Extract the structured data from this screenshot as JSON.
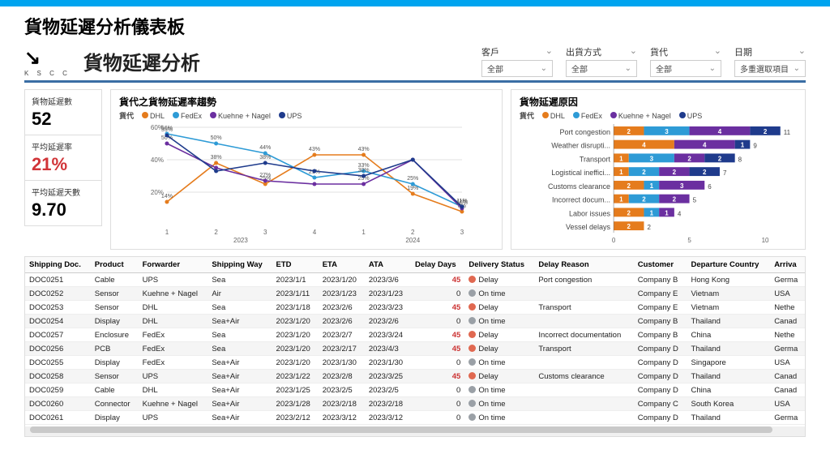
{
  "colors": {
    "dhl": "#e57c1d",
    "fedex": "#2e9bd6",
    "kn": "#6b2fa0",
    "ups": "#1f3b8c",
    "delay": "#e06850",
    "ontime": "#9aa0a6",
    "grid": "#e0e0e0",
    "axis": "#666"
  },
  "page": {
    "title": "貨物延遲分析儀表板"
  },
  "dash": {
    "title": "貨物延遲分析",
    "logo_sub": "K S C C"
  },
  "filters": [
    {
      "label": "客戶",
      "value": "全部"
    },
    {
      "label": "出貨方式",
      "value": "全部"
    },
    {
      "label": "貨代",
      "value": "全部"
    },
    {
      "label": "日期",
      "value": "多重選取項目"
    }
  ],
  "kpis": [
    {
      "label": "貨物延遲數",
      "value": "52",
      "cls": ""
    },
    {
      "label": "平均延遲率",
      "value": "21%",
      "cls": "kpi-red"
    },
    {
      "label": "平均延遲天數",
      "value": "9.70",
      "cls": ""
    }
  ],
  "line": {
    "title": "貨代之貨物延遲率趨勢",
    "legend_label": "貨代",
    "series_names": [
      "DHL",
      "FedEx",
      "Kuehne + Nagel",
      "UPS"
    ],
    "y": {
      "min": 0,
      "max": 60,
      "ticks": [
        20,
        40,
        60
      ]
    },
    "x_groups": [
      {
        "label": "2023",
        "ticks": [
          "1",
          "2",
          "3",
          "4"
        ]
      },
      {
        "label": "2024",
        "ticks": [
          "1",
          "2",
          "3"
        ]
      }
    ],
    "series": {
      "DHL": [
        14,
        38,
        25,
        43,
        43,
        19,
        8
      ],
      "FedEx": [
        56,
        50,
        44,
        29,
        33,
        25,
        11
      ],
      "Kuehne + Nagel": [
        50,
        35,
        27,
        25,
        25,
        40,
        10
      ],
      "UPS": [
        55,
        33,
        38,
        33,
        30,
        40,
        11
      ]
    }
  },
  "bars": {
    "title": "貨物延遲原因",
    "legend_label": "貨代",
    "series_names": [
      "DHL",
      "FedEx",
      "Kuehne + Nagel",
      "UPS"
    ],
    "x": {
      "min": 0,
      "max": 10,
      "ticks": [
        0,
        5,
        10
      ]
    },
    "rows": [
      {
        "label": "Port congestion",
        "seg": [
          2,
          3,
          4,
          2
        ],
        "total": 11
      },
      {
        "label": "Weather disrupti...",
        "seg": [
          4,
          0,
          4,
          1
        ],
        "total": 9
      },
      {
        "label": "Transport",
        "seg": [
          1,
          3,
          2,
          2
        ],
        "total": 8
      },
      {
        "label": "Logistical ineffici...",
        "seg": [
          1,
          2,
          2,
          2
        ],
        "total": 7
      },
      {
        "label": "Customs clearance",
        "seg": [
          2,
          1,
          3,
          0
        ],
        "total": 6
      },
      {
        "label": "Incorrect docum...",
        "seg": [
          1,
          2,
          2,
          0
        ],
        "total": 5
      },
      {
        "label": "Labor issues",
        "seg": [
          2,
          1,
          1,
          0
        ],
        "total": 4
      },
      {
        "label": "Vessel delays",
        "seg": [
          2,
          0,
          0,
          0
        ],
        "total": 2
      }
    ]
  },
  "table": {
    "headers": [
      "Shipping Doc.",
      "Product",
      "Forwarder",
      "Shipping Way",
      "ETD",
      "ETA",
      "ATA",
      "Delay Days",
      "Delivery Status",
      "Delay Reason",
      "Customer",
      "Departure Country",
      "Arriva"
    ],
    "rows": [
      [
        "DOC0251",
        "Cable",
        "UPS",
        "Sea",
        "2023/1/1",
        "2023/1/20",
        "2023/3/6",
        "45",
        "Delay",
        "Port congestion",
        "Company B",
        "Hong Kong",
        "Germa"
      ],
      [
        "DOC0252",
        "Sensor",
        "Kuehne + Nagel",
        "Air",
        "2023/1/11",
        "2023/1/23",
        "2023/1/23",
        "0",
        "On time",
        "",
        "Company E",
        "Vietnam",
        "USA"
      ],
      [
        "DOC0253",
        "Sensor",
        "DHL",
        "Sea",
        "2023/1/18",
        "2023/2/6",
        "2023/3/23",
        "45",
        "Delay",
        "Transport",
        "Company E",
        "Vietnam",
        "Nethe"
      ],
      [
        "DOC0254",
        "Display",
        "DHL",
        "Sea+Air",
        "2023/1/20",
        "2023/2/6",
        "2023/2/6",
        "0",
        "On time",
        "",
        "Company B",
        "Thailand",
        "Canad"
      ],
      [
        "DOC0257",
        "Enclosure",
        "FedEx",
        "Sea",
        "2023/1/20",
        "2023/2/7",
        "2023/3/24",
        "45",
        "Delay",
        "Incorrect documentation",
        "Company B",
        "China",
        "Nethe"
      ],
      [
        "DOC0256",
        "PCB",
        "FedEx",
        "Sea",
        "2023/1/20",
        "2023/2/17",
        "2023/4/3",
        "45",
        "Delay",
        "Transport",
        "Company D",
        "Thailand",
        "Germa"
      ],
      [
        "DOC0255",
        "Display",
        "FedEx",
        "Sea+Air",
        "2023/1/20",
        "2023/1/30",
        "2023/1/30",
        "0",
        "On time",
        "",
        "Company D",
        "Singapore",
        "USA"
      ],
      [
        "DOC0258",
        "Sensor",
        "UPS",
        "Sea+Air",
        "2023/1/22",
        "2023/2/8",
        "2023/3/25",
        "45",
        "Delay",
        "Customs clearance",
        "Company D",
        "Thailand",
        "Canad"
      ],
      [
        "DOC0259",
        "Cable",
        "DHL",
        "Sea+Air",
        "2023/1/25",
        "2023/2/5",
        "2023/2/5",
        "0",
        "On time",
        "",
        "Company D",
        "China",
        "Canad"
      ],
      [
        "DOC0260",
        "Connector",
        "Kuehne + Nagel",
        "Sea+Air",
        "2023/1/28",
        "2023/2/18",
        "2023/2/18",
        "0",
        "On time",
        "",
        "Company C",
        "South Korea",
        "USA"
      ],
      [
        "DOC0261",
        "Display",
        "UPS",
        "Sea+Air",
        "2023/2/12",
        "2023/3/12",
        "2023/3/12",
        "0",
        "On time",
        "",
        "Company D",
        "Thailand",
        "Germa"
      ]
    ]
  }
}
